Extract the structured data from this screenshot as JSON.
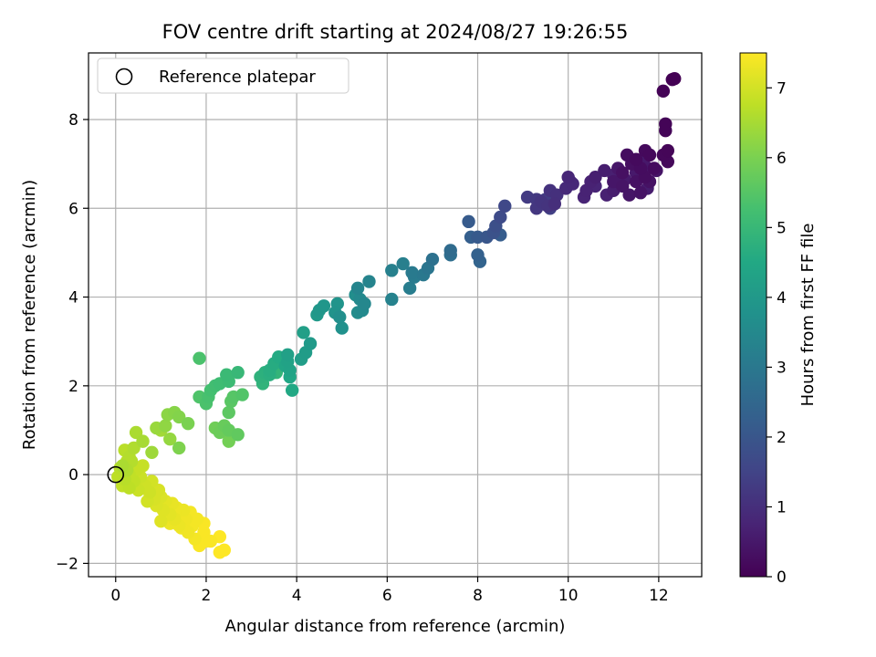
{
  "chart_data": {
    "type": "scatter",
    "title": "FOV centre drift starting at 2024/08/27 19:26:55",
    "xlabel": "Angular distance from reference (arcmin)",
    "ylabel": "Rotation from reference (arcmin)",
    "xlim": [
      -0.6,
      12.95
    ],
    "ylim": [
      -2.3,
      9.5
    ],
    "x_ticks": [
      0,
      2,
      4,
      6,
      8,
      10,
      12
    ],
    "y_ticks": [
      -2,
      0,
      2,
      4,
      6,
      8
    ],
    "grid": true,
    "legend": {
      "position": "top-left",
      "entries": [
        "Reference platepar"
      ]
    },
    "colorbar": {
      "label": "Hours from first FF file",
      "colormap": "viridis",
      "range": [
        0,
        7.5
      ],
      "ticks": [
        0,
        1,
        2,
        3,
        4,
        5,
        6,
        7
      ]
    },
    "reference_point": {
      "x": 0,
      "y": 0
    },
    "points": [
      [
        12.35,
        8.92,
        0.0
      ],
      [
        12.3,
        8.9,
        0.02
      ],
      [
        12.1,
        8.64,
        0.05
      ],
      [
        12.15,
        7.9,
        0.07
      ],
      [
        12.15,
        7.75,
        0.09
      ],
      [
        12.2,
        7.3,
        0.1
      ],
      [
        12.1,
        7.2,
        0.12
      ],
      [
        12.2,
        7.05,
        0.14
      ],
      [
        11.8,
        7.2,
        0.16
      ],
      [
        11.7,
        7.3,
        0.18
      ],
      [
        11.5,
        7.1,
        0.2
      ],
      [
        11.9,
        6.9,
        0.22
      ],
      [
        11.6,
        6.9,
        0.24
      ],
      [
        11.7,
        6.7,
        0.26
      ],
      [
        11.3,
        7.2,
        0.28
      ],
      [
        11.4,
        7.0,
        0.3
      ],
      [
        11.2,
        6.8,
        0.32
      ],
      [
        11.5,
        6.6,
        0.34
      ],
      [
        11.8,
        6.6,
        0.36
      ],
      [
        11.6,
        6.35,
        0.38
      ],
      [
        11.95,
        6.85,
        0.4
      ],
      [
        11.2,
        6.5,
        0.42
      ],
      [
        11.35,
        6.3,
        0.44
      ],
      [
        11.0,
        6.6,
        0.46
      ],
      [
        11.1,
        6.9,
        0.48
      ],
      [
        11.7,
        6.95,
        0.5
      ],
      [
        11.5,
        6.8,
        0.52
      ],
      [
        11.25,
        6.65,
        0.54
      ],
      [
        11.65,
        7.1,
        0.56
      ],
      [
        11.75,
        6.45,
        0.58
      ],
      [
        11.0,
        6.4,
        0.6
      ],
      [
        10.8,
        6.85,
        0.62
      ],
      [
        10.6,
        6.7,
        0.64
      ],
      [
        11.0,
        6.75,
        0.66
      ],
      [
        10.85,
        6.3,
        0.68
      ],
      [
        10.5,
        6.6,
        0.7
      ],
      [
        10.4,
        6.4,
        0.72
      ],
      [
        10.35,
        6.25,
        0.75
      ],
      [
        10.6,
        6.5,
        0.78
      ],
      [
        10.0,
        6.7,
        0.82
      ],
      [
        10.1,
        6.55,
        0.86
      ],
      [
        9.95,
        6.45,
        0.9
      ],
      [
        10.05,
        6.6,
        0.94
      ],
      [
        9.7,
        6.1,
        1.0
      ],
      [
        9.75,
        6.3,
        1.04
      ],
      [
        9.6,
        6.4,
        1.08
      ],
      [
        9.55,
        6.05,
        1.12
      ],
      [
        9.4,
        6.15,
        1.16
      ],
      [
        9.3,
        6.0,
        1.2
      ],
      [
        9.3,
        6.2,
        1.25
      ],
      [
        9.1,
        6.25,
        1.3
      ],
      [
        9.5,
        6.2,
        1.35
      ],
      [
        9.6,
        6.0,
        1.4
      ],
      [
        8.6,
        6.05,
        1.6
      ],
      [
        8.5,
        5.8,
        1.7
      ],
      [
        8.4,
        5.6,
        1.8
      ],
      [
        8.35,
        5.45,
        1.9
      ],
      [
        8.2,
        5.35,
        2.0
      ],
      [
        8.0,
        5.35,
        2.1
      ],
      [
        7.8,
        5.7,
        2.15
      ],
      [
        8.5,
        5.4,
        2.2
      ],
      [
        7.85,
        5.35,
        2.25
      ],
      [
        8.0,
        4.95,
        2.3
      ],
      [
        8.05,
        4.8,
        2.4
      ],
      [
        7.4,
        5.05,
        2.6
      ],
      [
        7.4,
        4.95,
        2.7
      ],
      [
        7.0,
        4.85,
        2.8
      ],
      [
        6.9,
        4.65,
        2.9
      ],
      [
        6.8,
        4.5,
        3.0
      ],
      [
        6.55,
        4.55,
        3.05
      ],
      [
        6.6,
        4.45,
        3.1
      ],
      [
        6.5,
        4.2,
        3.15
      ],
      [
        6.35,
        4.75,
        3.2
      ],
      [
        6.1,
        4.6,
        3.25
      ],
      [
        6.1,
        3.95,
        3.3
      ],
      [
        5.6,
        4.35,
        3.35
      ],
      [
        5.35,
        4.2,
        3.4
      ],
      [
        5.5,
        3.85,
        3.45
      ],
      [
        5.4,
        3.95,
        3.5
      ],
      [
        5.45,
        3.7,
        3.55
      ],
      [
        5.35,
        3.65,
        3.6
      ],
      [
        5.3,
        4.05,
        3.65
      ],
      [
        4.95,
        3.55,
        3.7
      ],
      [
        5.0,
        3.3,
        3.75
      ],
      [
        4.85,
        3.65,
        3.8
      ],
      [
        4.9,
        3.85,
        3.85
      ],
      [
        4.6,
        3.8,
        3.9
      ],
      [
        4.5,
        3.7,
        3.95
      ],
      [
        4.45,
        3.6,
        4.0
      ],
      [
        4.3,
        2.95,
        4.05
      ],
      [
        4.2,
        2.75,
        4.1
      ],
      [
        4.1,
        2.6,
        4.15
      ],
      [
        4.15,
        3.2,
        4.2
      ],
      [
        3.8,
        2.7,
        4.25
      ],
      [
        3.8,
        2.55,
        4.3
      ],
      [
        3.85,
        2.35,
        4.35
      ],
      [
        3.75,
        2.45,
        4.4
      ],
      [
        3.85,
        2.2,
        4.45
      ],
      [
        3.9,
        1.9,
        4.5
      ],
      [
        3.6,
        2.65,
        4.55
      ],
      [
        3.5,
        2.5,
        4.6
      ],
      [
        3.4,
        2.35,
        4.65
      ],
      [
        3.4,
        2.25,
        4.7
      ],
      [
        3.3,
        2.3,
        4.75
      ],
      [
        3.2,
        2.2,
        4.8
      ],
      [
        3.25,
        2.05,
        4.85
      ],
      [
        3.55,
        2.3,
        4.9
      ],
      [
        2.7,
        2.3,
        5.0
      ],
      [
        2.45,
        2.25,
        5.05
      ],
      [
        2.5,
        2.1,
        5.1
      ],
      [
        2.3,
        2.05,
        5.15
      ],
      [
        2.2,
        2.0,
        5.2
      ],
      [
        2.1,
        1.9,
        5.25
      ],
      [
        2.05,
        1.75,
        5.3
      ],
      [
        2.0,
        1.6,
        5.35
      ],
      [
        1.85,
        1.75,
        5.4
      ],
      [
        2.8,
        1.8,
        5.45
      ],
      [
        2.6,
        1.75,
        5.5
      ],
      [
        2.55,
        1.65,
        5.55
      ],
      [
        2.5,
        1.4,
        5.6
      ],
      [
        2.7,
        0.9,
        5.65
      ],
      [
        2.5,
        1.0,
        5.7
      ],
      [
        2.4,
        1.1,
        5.75
      ],
      [
        2.3,
        0.95,
        5.8
      ],
      [
        2.2,
        1.05,
        5.85
      ],
      [
        2.5,
        0.75,
        5.9
      ],
      [
        1.85,
        2.62,
        5.35
      ],
      [
        1.6,
        1.15,
        6.0
      ],
      [
        1.4,
        0.6,
        6.05
      ],
      [
        1.4,
        1.3,
        6.1
      ],
      [
        1.3,
        1.4,
        6.15
      ],
      [
        1.15,
        1.35,
        6.2
      ],
      [
        1.1,
        1.1,
        6.25
      ],
      [
        1.2,
        0.8,
        6.3
      ],
      [
        0.9,
        1.05,
        6.35
      ],
      [
        0.8,
        0.5,
        6.4
      ],
      [
        1.0,
        1.0,
        6.45
      ],
      [
        0.6,
        0.75,
        6.5
      ],
      [
        0.45,
        0.95,
        6.55
      ],
      [
        0.4,
        0.6,
        6.6
      ],
      [
        0.3,
        0.4,
        6.65
      ],
      [
        0.2,
        0.55,
        6.7
      ],
      [
        0.15,
        0.2,
        6.55
      ],
      [
        0.25,
        0.1,
        6.6
      ],
      [
        0.35,
        0.3,
        6.65
      ],
      [
        0.2,
        -0.1,
        6.7
      ],
      [
        0.3,
        -0.3,
        6.75
      ],
      [
        0.4,
        -0.15,
        6.8
      ],
      [
        0.45,
        0.1,
        6.85
      ],
      [
        0.55,
        -0.05,
        6.9
      ],
      [
        0.5,
        -0.35,
        6.9
      ],
      [
        0.6,
        0.2,
        6.85
      ],
      [
        0.65,
        -0.25,
        6.95
      ],
      [
        0.75,
        -0.4,
        6.95
      ],
      [
        0.8,
        -0.15,
        7.0
      ],
      [
        0.7,
        -0.6,
        7.0
      ],
      [
        0.85,
        -0.55,
        7.05
      ],
      [
        0.95,
        -0.35,
        7.05
      ],
      [
        0.9,
        -0.7,
        7.1
      ],
      [
        1.0,
        -0.5,
        7.1
      ],
      [
        1.05,
        -0.8,
        7.15
      ],
      [
        1.0,
        -1.05,
        7.15
      ],
      [
        1.1,
        -0.6,
        7.2
      ],
      [
        1.2,
        -0.9,
        7.2
      ],
      [
        1.25,
        -0.65,
        7.25
      ],
      [
        1.3,
        -1.0,
        7.25
      ],
      [
        1.35,
        -0.75,
        7.3
      ],
      [
        1.4,
        -1.15,
        7.3
      ],
      [
        1.5,
        -0.8,
        7.3
      ],
      [
        1.5,
        -1.2,
        7.35
      ],
      [
        1.55,
        -1.0,
        7.35
      ],
      [
        1.6,
        -1.3,
        7.35
      ],
      [
        1.65,
        -0.85,
        7.4
      ],
      [
        1.7,
        -1.15,
        7.4
      ],
      [
        1.75,
        -1.45,
        7.4
      ],
      [
        1.85,
        -1.6,
        7.45
      ],
      [
        1.95,
        -1.3,
        7.45
      ],
      [
        2.0,
        -1.5,
        7.45
      ],
      [
        2.1,
        -1.5,
        7.45
      ],
      [
        2.3,
        -1.4,
        7.5
      ],
      [
        2.3,
        -1.75,
        7.5
      ],
      [
        2.4,
        -1.7,
        7.5
      ],
      [
        1.8,
        -1.0,
        7.4
      ],
      [
        1.95,
        -1.1,
        7.45
      ],
      [
        1.45,
        -1.2,
        7.35
      ],
      [
        1.2,
        -1.1,
        7.3
      ],
      [
        1.15,
        -0.75,
        7.25
      ],
      [
        1.3,
        -0.85,
        7.3
      ],
      [
        0.85,
        -0.45,
        7.1
      ],
      [
        0.55,
        -0.2,
        6.95
      ],
      [
        0.3,
        0.0,
        6.8
      ],
      [
        0.1,
        0.15,
        6.7
      ],
      [
        0.05,
        -0.05,
        6.75
      ],
      [
        0.15,
        -0.25,
        6.8
      ],
      [
        0.25,
        0.3,
        6.7
      ]
    ]
  }
}
